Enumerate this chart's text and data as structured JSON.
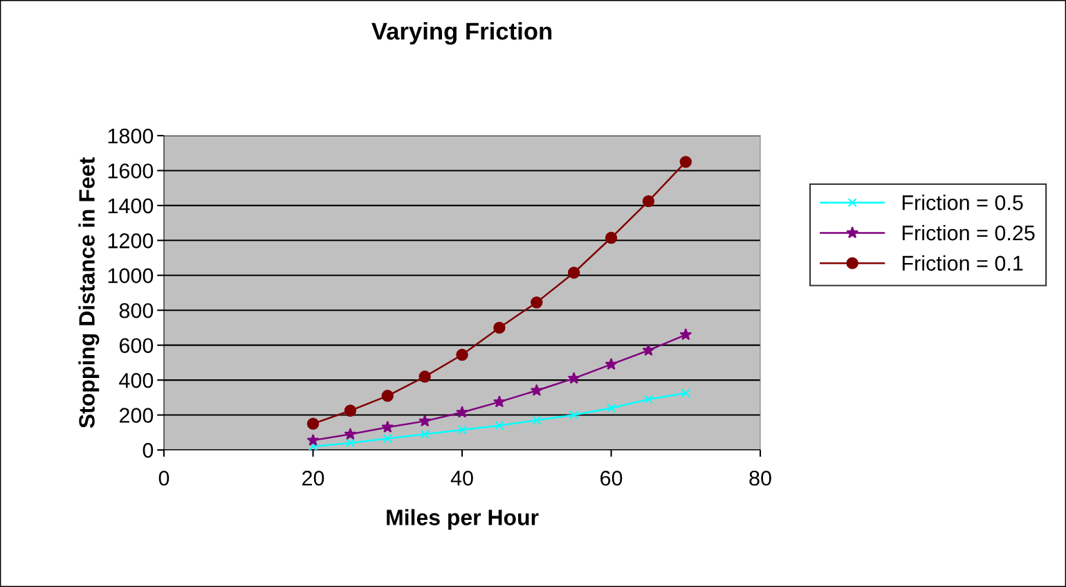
{
  "chart_data": {
    "type": "line",
    "title": "Varying Friction",
    "xlabel": "Miles per Hour",
    "ylabel": "Stopping Distance in Feet",
    "x": [
      20,
      25,
      30,
      35,
      40,
      45,
      50,
      55,
      60,
      65,
      70
    ],
    "series": [
      {
        "name": "Friction = 0.5",
        "color": "#00ffff",
        "marker": "cross",
        "values": [
          20,
          40,
          65,
          90,
          115,
          140,
          170,
          200,
          240,
          290,
          325
        ]
      },
      {
        "name": "Friction = 0.25",
        "color": "#800080",
        "marker": "star",
        "values": [
          55,
          90,
          130,
          165,
          215,
          275,
          340,
          410,
          490,
          570,
          660
        ]
      },
      {
        "name": "Friction = 0.1",
        "color": "#800000",
        "marker": "circle",
        "values": [
          150,
          225,
          310,
          420,
          545,
          700,
          845,
          1015,
          1215,
          1425,
          1650
        ]
      }
    ],
    "xlim": [
      0,
      80
    ],
    "xticks": [
      0,
      20,
      40,
      60,
      80
    ],
    "ylim": [
      0,
      1800
    ],
    "yticks": [
      0,
      200,
      400,
      600,
      800,
      1000,
      1200,
      1400,
      1600,
      1800
    ],
    "grid": "y",
    "legend": "right",
    "line_style": "solid"
  }
}
